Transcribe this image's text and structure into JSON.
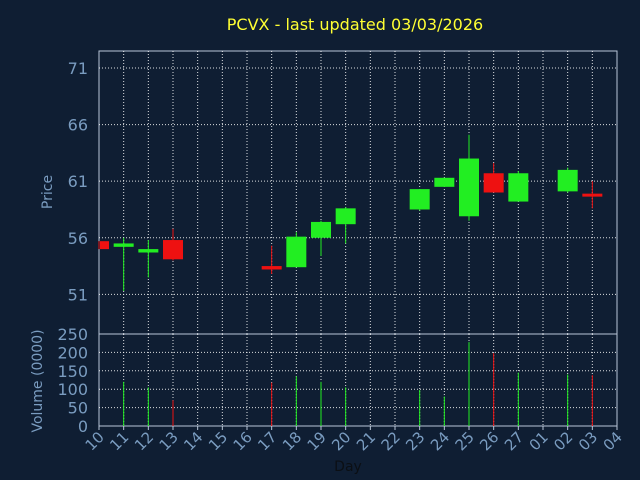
{
  "colors": {
    "background": "#0f1e33",
    "plot_border": "#b8c6d8",
    "grid": "#ffffff",
    "title": "#ffff33",
    "axis_text": "#7a9cc0",
    "xlabel": "#0b0f14",
    "up": "#22ee22",
    "down": "#ee1111"
  },
  "chart_data": [
    {
      "type": "candlestick",
      "title": "PCVX - last updated 03/03/2026",
      "ylabel": "Price",
      "xlabel": "",
      "ylim": [
        47.5,
        72.5
      ],
      "yticks": [
        51,
        56,
        61,
        66,
        71
      ],
      "grid": true,
      "categories": [
        "10",
        "11",
        "12",
        "13",
        "14",
        "15",
        "16",
        "17",
        "18",
        "19",
        "20",
        "21",
        "22",
        "23",
        "24",
        "25",
        "26",
        "27",
        "01",
        "02",
        "03",
        "04"
      ],
      "candles": [
        {
          "x": "10",
          "open": 55.7,
          "high": 55.7,
          "low": 55.0,
          "close": 55.0
        },
        {
          "x": "11",
          "open": 55.2,
          "high": 56.0,
          "low": 51.3,
          "close": 55.5
        },
        {
          "x": "12",
          "open": 54.7,
          "high": 55.8,
          "low": 52.5,
          "close": 55.0
        },
        {
          "x": "13",
          "open": 55.8,
          "high": 56.8,
          "low": 54.0,
          "close": 54.1
        },
        {
          "x": "17",
          "open": 53.5,
          "high": 55.3,
          "low": 52.8,
          "close": 53.2
        },
        {
          "x": "18",
          "open": 53.4,
          "high": 56.5,
          "low": 53.4,
          "close": 56.1
        },
        {
          "x": "19",
          "open": 56.0,
          "high": 57.5,
          "low": 54.4,
          "close": 57.4
        },
        {
          "x": "20",
          "open": 57.2,
          "high": 58.7,
          "low": 55.5,
          "close": 58.6
        },
        {
          "x": "23",
          "open": 58.5,
          "high": 60.3,
          "low": 58.4,
          "close": 60.3
        },
        {
          "x": "24",
          "open": 60.5,
          "high": 61.3,
          "low": 60.5,
          "close": 61.3
        },
        {
          "x": "25",
          "open": 57.9,
          "high": 65.1,
          "low": 57.5,
          "close": 63.0
        },
        {
          "x": "26",
          "open": 61.7,
          "high": 62.6,
          "low": 60.0,
          "close": 60.0
        },
        {
          "x": "27",
          "open": 59.2,
          "high": 61.9,
          "low": 59.2,
          "close": 61.7
        },
        {
          "x": "02",
          "open": 60.1,
          "high": 62.2,
          "low": 60.0,
          "close": 62.0
        },
        {
          "x": "03",
          "open": 59.9,
          "high": 61.0,
          "low": 58.6,
          "close": 59.7
        }
      ]
    },
    {
      "type": "bar",
      "title": "",
      "ylabel": "Volume (0000)",
      "xlabel": "Day",
      "ylim": [
        0,
        250
      ],
      "yticks": [
        0,
        50,
        100,
        150,
        200,
        250
      ],
      "grid": true,
      "categories": [
        "10",
        "11",
        "12",
        "13",
        "14",
        "15",
        "16",
        "17",
        "18",
        "19",
        "20",
        "21",
        "22",
        "23",
        "24",
        "25",
        "26",
        "27",
        "01",
        "02",
        "03",
        "04"
      ],
      "values": [
        {
          "x": "11",
          "volume": 120,
          "direction": "up"
        },
        {
          "x": "12",
          "volume": 105,
          "direction": "up"
        },
        {
          "x": "13",
          "volume": 70,
          "direction": "down"
        },
        {
          "x": "17",
          "volume": 118,
          "direction": "down"
        },
        {
          "x": "18",
          "volume": 135,
          "direction": "up"
        },
        {
          "x": "19",
          "volume": 120,
          "direction": "up"
        },
        {
          "x": "20",
          "volume": 105,
          "direction": "up"
        },
        {
          "x": "23",
          "volume": 98,
          "direction": "up"
        },
        {
          "x": "24",
          "volume": 80,
          "direction": "up"
        },
        {
          "x": "25",
          "volume": 228,
          "direction": "up"
        },
        {
          "x": "26",
          "volume": 198,
          "direction": "down"
        },
        {
          "x": "27",
          "volume": 145,
          "direction": "up"
        },
        {
          "x": "02",
          "volume": 140,
          "direction": "up"
        },
        {
          "x": "03",
          "volume": 138,
          "direction": "down"
        }
      ]
    }
  ]
}
